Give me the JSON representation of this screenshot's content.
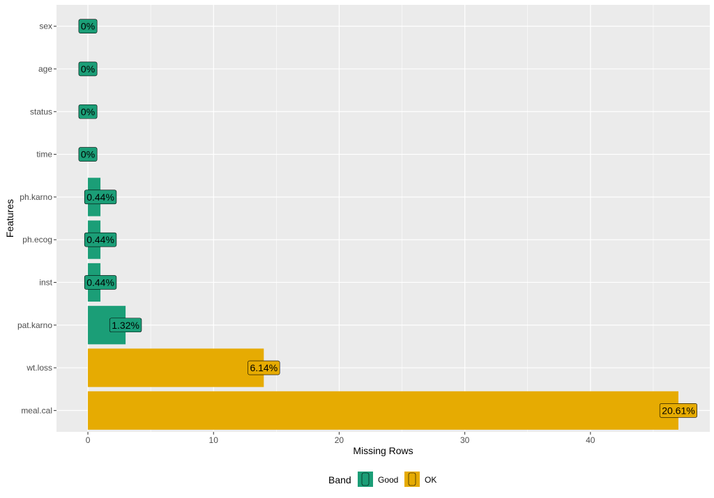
{
  "chart_data": {
    "type": "bar",
    "orientation": "horizontal",
    "xlabel": "Missing Rows",
    "ylabel": "Features",
    "xlim": [
      -2.5,
      49.5
    ],
    "xticks": [
      0,
      10,
      20,
      30,
      40
    ],
    "grid": true,
    "legend_position": "bottom",
    "legend_title": "Band",
    "bands": [
      {
        "name": "Good",
        "color": "#1b9e77"
      },
      {
        "name": "OK",
        "color": "#e6ab02"
      }
    ],
    "categories": [
      "sex",
      "age",
      "status",
      "time",
      "ph.karno",
      "ph.ecog",
      "inst",
      "pat.karno",
      "wt.loss",
      "meal.cal"
    ],
    "values": [
      0,
      0,
      0,
      0,
      1,
      1,
      1,
      3,
      14,
      47
    ],
    "labels": [
      "0%",
      "0%",
      "0%",
      "0%",
      "0.44%",
      "0.44%",
      "0.44%",
      "1.32%",
      "6.14%",
      "20.61%"
    ],
    "band": [
      "Good",
      "Good",
      "Good",
      "Good",
      "Good",
      "Good",
      "Good",
      "Good",
      "OK",
      "OK"
    ]
  }
}
